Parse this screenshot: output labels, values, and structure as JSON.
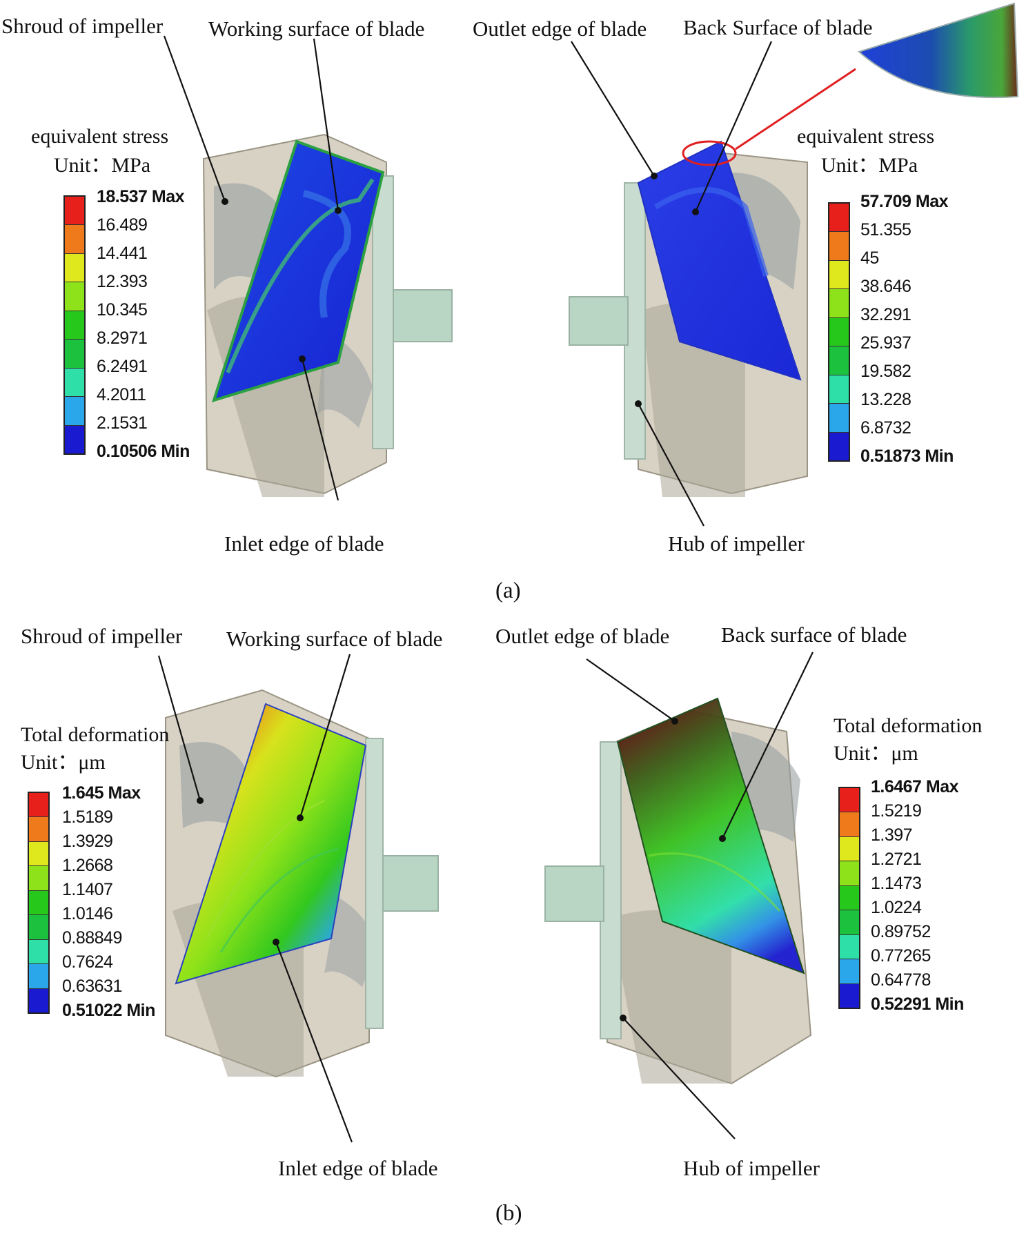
{
  "panels": [
    {
      "tag": "(a)",
      "left": {
        "labels": {
          "shroud": "Shroud of impeller",
          "working": "Working surface of blade",
          "inlet": "Inlet edge of blade"
        },
        "legend": {
          "title": "equivalent stress",
          "unit": "Unit：MPa",
          "values": [
            "18.537 Max",
            "16.489",
            "14.441",
            "12.393",
            "10.345",
            "8.2971",
            "6.2491",
            "4.2011",
            "2.1531",
            "0.10506 Min"
          ]
        }
      },
      "right": {
        "labels": {
          "outlet": "Outlet edge of blade",
          "back": "Back Surface of blade",
          "hub": "Hub of impeller"
        },
        "legend": {
          "title": "equivalent stress",
          "unit": "Unit：MPa",
          "values": [
            "57.709 Max",
            "51.355",
            "45",
            "38.646",
            "32.291",
            "25.937",
            "19.582",
            "13.228",
            "6.8732",
            "0.51873 Min"
          ]
        }
      }
    },
    {
      "tag": "(b)",
      "left": {
        "labels": {
          "shroud": "Shroud of impeller",
          "working": "Working surface of blade",
          "inlet": "Inlet edge of blade"
        },
        "legend": {
          "title": "Total deformation",
          "unit": "Unit：μm",
          "values": [
            "1.645 Max",
            "1.5189",
            "1.3929",
            "1.2668",
            "1.1407",
            "1.0146",
            "0.88849",
            "0.7624",
            "0.63631",
            "0.51022 Min"
          ]
        }
      },
      "right": {
        "labels": {
          "outlet": "Outlet edge of blade",
          "back": "Back surface of blade",
          "hub": "Hub of impeller"
        },
        "legend": {
          "title": "Total deformation",
          "unit": "Unit：μm",
          "values": [
            "1.6467 Max",
            "1.5219",
            "1.397",
            "1.2721",
            "1.1473",
            "1.0224",
            "0.89752",
            "0.77265",
            "0.64778",
            "0.52291 Min"
          ]
        }
      }
    }
  ],
  "colors": {
    "scale": [
      "#e8201c",
      "#ee7a1c",
      "#dfe81c",
      "#8ee21a",
      "#27c81c",
      "#1cc23e",
      "#2ee0a8",
      "#2aa6ea",
      "#1f46e0",
      "#1a1ad0"
    ],
    "housing": "#cbc3b2",
    "housing_edge": "#9a9484",
    "hub_green": "#b9d6c4",
    "leader": "#111111",
    "callout": "#e02020"
  }
}
